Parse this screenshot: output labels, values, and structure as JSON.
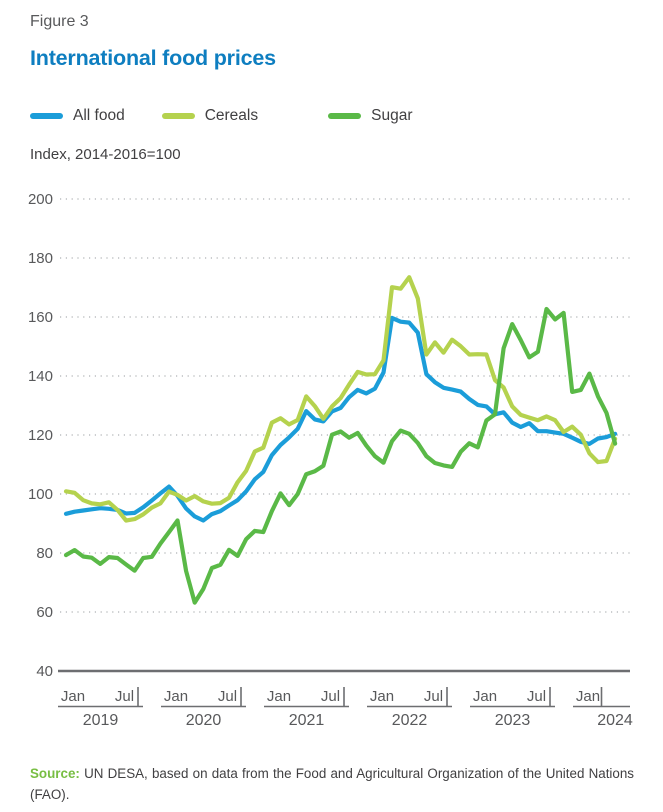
{
  "figure": {
    "label": "Figure 3",
    "title": "International food prices",
    "title_color": "#0e7ec0"
  },
  "axis_note": "Index, 2014-2016=100",
  "source": {
    "prefix": "Source:",
    "prefix_color": "#78be43",
    "text": "UN DESA, based on data from the Food and Agricultural Organization of the United Nations (FAO)."
  },
  "chart_data": {
    "type": "line",
    "title": "International food prices",
    "ylabel": "Index, 2014-2016=100",
    "ylim": [
      40,
      200
    ],
    "yticks": [
      40,
      60,
      80,
      100,
      120,
      140,
      160,
      180,
      200
    ],
    "grid": "dotted horizontal gridlines, solid baseline at 40",
    "legend_position": "top",
    "x_axis": {
      "month_labels": [
        "Jan",
        "Jul"
      ],
      "years": [
        "2019",
        "2020",
        "2021",
        "2022",
        "2023",
        "2024"
      ],
      "last_year_months": [
        "Jan"
      ]
    },
    "x": [
      "2019-01",
      "2019-02",
      "2019-03",
      "2019-04",
      "2019-05",
      "2019-06",
      "2019-07",
      "2019-08",
      "2019-09",
      "2019-10",
      "2019-11",
      "2019-12",
      "2020-01",
      "2020-02",
      "2020-03",
      "2020-04",
      "2020-05",
      "2020-06",
      "2020-07",
      "2020-08",
      "2020-09",
      "2020-10",
      "2020-11",
      "2020-12",
      "2021-01",
      "2021-02",
      "2021-03",
      "2021-04",
      "2021-05",
      "2021-06",
      "2021-07",
      "2021-08",
      "2021-09",
      "2021-10",
      "2021-11",
      "2021-12",
      "2022-01",
      "2022-02",
      "2022-03",
      "2022-04",
      "2022-05",
      "2022-06",
      "2022-07",
      "2022-08",
      "2022-09",
      "2022-10",
      "2022-11",
      "2022-12",
      "2023-01",
      "2023-02",
      "2023-03",
      "2023-04",
      "2023-05",
      "2023-06",
      "2023-07",
      "2023-08",
      "2023-09",
      "2023-10",
      "2023-11",
      "2023-12",
      "2024-01",
      "2024-02",
      "2024-03",
      "2024-04",
      "2024-05"
    ],
    "series": [
      {
        "name": "All food",
        "color": "#1b9dd9",
        "values": [
          93.3,
          94.0,
          94.4,
          94.8,
          95.2,
          95.0,
          94.6,
          93.4,
          93.6,
          95.5,
          97.8,
          100.2,
          102.5,
          99.4,
          95.1,
          92.4,
          91.0,
          93.2,
          94.2,
          96.1,
          97.9,
          100.9,
          105.0,
          107.5,
          113.2,
          116.6,
          119.2,
          122.1,
          128.1,
          125.3,
          124.6,
          128.0,
          129.2,
          132.8,
          135.3,
          134.1,
          135.7,
          141.2,
          159.7,
          158.4,
          158.1,
          154.7,
          140.6,
          137.9,
          136.0,
          135.4,
          134.7,
          132.2,
          130.2,
          129.7,
          127.0,
          127.7,
          124.2,
          122.7,
          124.0,
          121.3,
          121.3,
          120.8,
          120.4,
          119.1,
          117.7,
          117.0,
          118.8,
          119.3,
          120.4
        ]
      },
      {
        "name": "Cereals",
        "color": "#b5d24e",
        "values": [
          100.9,
          100.4,
          97.9,
          96.8,
          96.5,
          97.2,
          94.6,
          91.0,
          91.5,
          93.1,
          95.4,
          96.8,
          100.8,
          99.7,
          97.8,
          99.3,
          97.5,
          96.7,
          96.9,
          98.7,
          104.0,
          107.9,
          114.4,
          115.7,
          124.2,
          125.7,
          123.6,
          125.1,
          133.1,
          129.8,
          125.5,
          129.7,
          132.5,
          137.1,
          141.4,
          140.5,
          140.6,
          145.3,
          170.1,
          169.6,
          173.5,
          166.3,
          147.3,
          151.4,
          147.9,
          152.3,
          150.1,
          147.3,
          147.4,
          147.3,
          138.6,
          136.1,
          129.7,
          126.8,
          125.9,
          125.0,
          126.3,
          125.0,
          121.0,
          122.8,
          120.1,
          113.8,
          110.8,
          111.2,
          118.7
        ]
      },
      {
        "name": "Sugar",
        "color": "#5ab947",
        "values": [
          79.3,
          81.0,
          78.8,
          78.4,
          76.3,
          78.6,
          78.3,
          76.1,
          74.0,
          78.3,
          78.7,
          83.2,
          87.1,
          91.0,
          73.9,
          63.2,
          67.8,
          74.9,
          76.0,
          81.1,
          79.0,
          84.7,
          87.5,
          87.1,
          94.2,
          100.2,
          96.2,
          100.0,
          106.7,
          107.7,
          109.6,
          120.1,
          121.2,
          119.1,
          120.7,
          116.4,
          112.8,
          110.6,
          117.9,
          121.5,
          120.4,
          117.3,
          112.8,
          110.5,
          109.7,
          109.2,
          114.3,
          117.2,
          115.8,
          124.9,
          127.0,
          149.4,
          157.6,
          152.2,
          146.3,
          148.2,
          162.7,
          159.2,
          161.4,
          134.6,
          135.3,
          140.8,
          133.1,
          127.5,
          117.1
        ]
      }
    ]
  }
}
